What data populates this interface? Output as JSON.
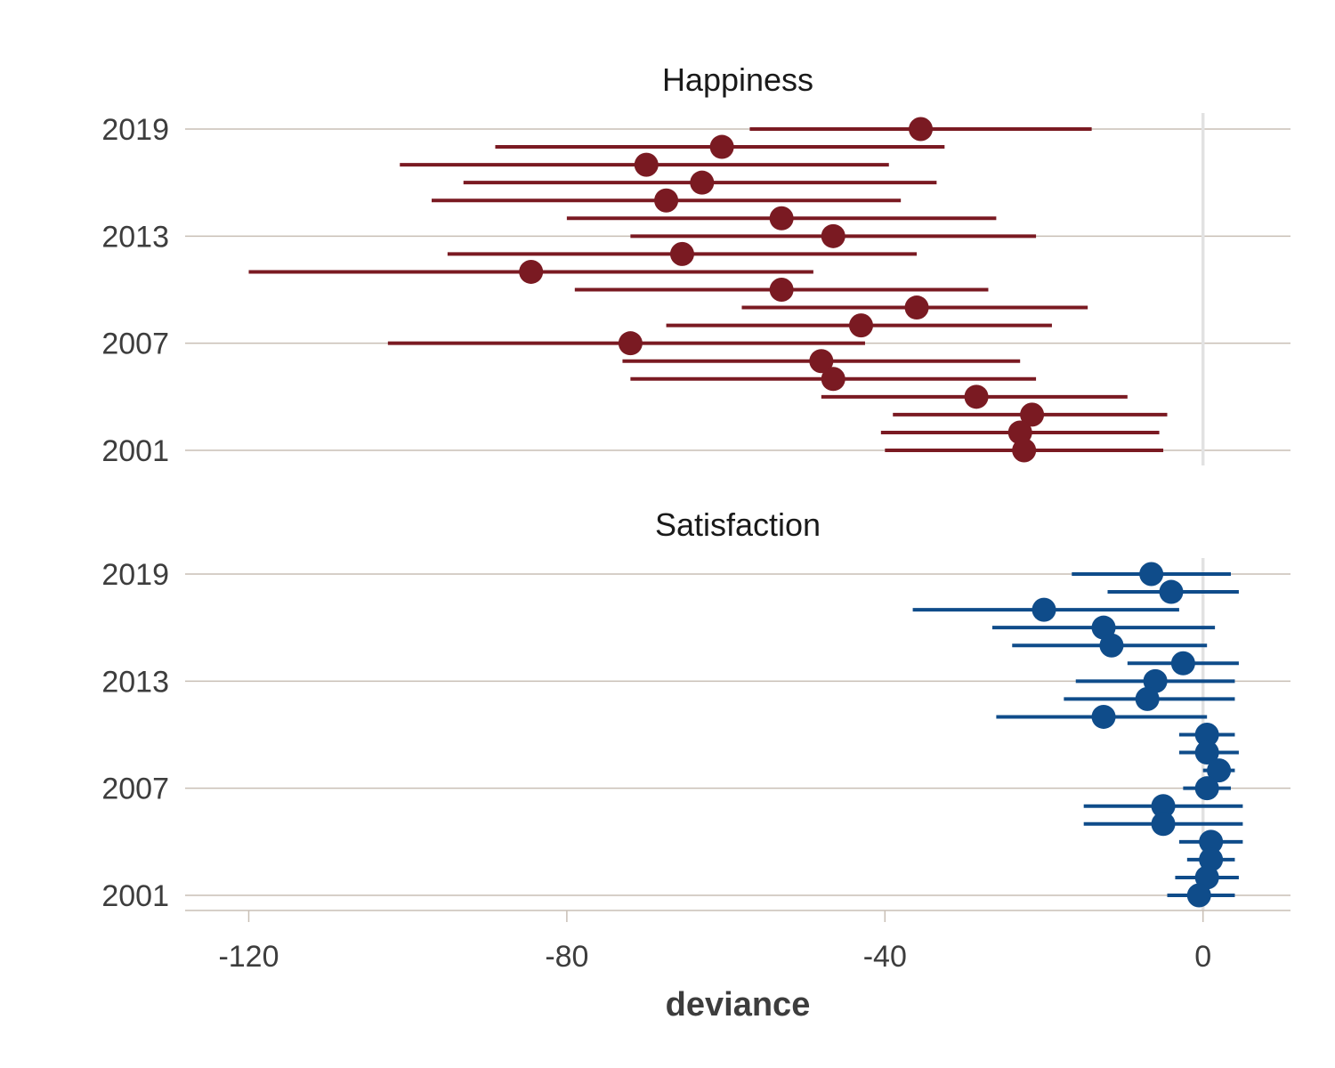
{
  "chart_data": {
    "type": "scatter",
    "subtype": "point-range (estimate with interval), faceted",
    "xlabel": "deviance",
    "xlim": [
      -128,
      11
    ],
    "x_ticks": [
      -120,
      -80,
      -40,
      0
    ],
    "y_ticks": [
      2001,
      2007,
      2013,
      2019
    ],
    "ylim": [
      2000.2,
      2019.8
    ],
    "grid": "horizontal gridlines at labeled years; vertical reference line at x = 0",
    "facets": [
      {
        "title": "Happiness",
        "color": "#7a1a22",
        "points": [
          {
            "year": 2019,
            "estimate": -35.5,
            "lower": -57,
            "upper": -14
          },
          {
            "year": 2018,
            "estimate": -60.5,
            "lower": -89,
            "upper": -32.5
          },
          {
            "year": 2017,
            "estimate": -70,
            "lower": -101,
            "upper": -39.5
          },
          {
            "year": 2016,
            "estimate": -63,
            "lower": -93,
            "upper": -33.5
          },
          {
            "year": 2015,
            "estimate": -67.5,
            "lower": -97,
            "upper": -38
          },
          {
            "year": 2014,
            "estimate": -53,
            "lower": -80,
            "upper": -26
          },
          {
            "year": 2013,
            "estimate": -46.5,
            "lower": -72,
            "upper": -21
          },
          {
            "year": 2012,
            "estimate": -65.5,
            "lower": -95,
            "upper": -36
          },
          {
            "year": 2011,
            "estimate": -84.5,
            "lower": -120,
            "upper": -49
          },
          {
            "year": 2010,
            "estimate": -53,
            "lower": -79,
            "upper": -27
          },
          {
            "year": 2009,
            "estimate": -36,
            "lower": -58,
            "upper": -14.5
          },
          {
            "year": 2008,
            "estimate": -43,
            "lower": -67.5,
            "upper": -19
          },
          {
            "year": 2007,
            "estimate": -72,
            "lower": -102.5,
            "upper": -42.5
          },
          {
            "year": 2006,
            "estimate": -48,
            "lower": -73,
            "upper": -23
          },
          {
            "year": 2005,
            "estimate": -46.5,
            "lower": -72,
            "upper": -21
          },
          {
            "year": 2004,
            "estimate": -28.5,
            "lower": -48,
            "upper": -9.5
          },
          {
            "year": 2003,
            "estimate": -21.5,
            "lower": -39,
            "upper": -4.5
          },
          {
            "year": 2002,
            "estimate": -23,
            "lower": -40.5,
            "upper": -5.5
          },
          {
            "year": 2001,
            "estimate": -22.5,
            "lower": -40,
            "upper": -5
          }
        ]
      },
      {
        "title": "Satisfaction",
        "color": "#0f4c8a",
        "points": [
          {
            "year": 2019,
            "estimate": -6.5,
            "lower": -16.5,
            "upper": 3.5
          },
          {
            "year": 2018,
            "estimate": -4,
            "lower": -12,
            "upper": 4.5
          },
          {
            "year": 2017,
            "estimate": -20,
            "lower": -36.5,
            "upper": -3
          },
          {
            "year": 2016,
            "estimate": -12.5,
            "lower": -26.5,
            "upper": 1.5
          },
          {
            "year": 2015,
            "estimate": -11.5,
            "lower": -24,
            "upper": 0.5
          },
          {
            "year": 2014,
            "estimate": -2.5,
            "lower": -9.5,
            "upper": 4.5
          },
          {
            "year": 2013,
            "estimate": -6,
            "lower": -16,
            "upper": 4
          },
          {
            "year": 2012,
            "estimate": -7,
            "lower": -17.5,
            "upper": 4
          },
          {
            "year": 2011,
            "estimate": -12.5,
            "lower": -26,
            "upper": 0.5
          },
          {
            "year": 2010,
            "estimate": 0.5,
            "lower": -3,
            "upper": 4
          },
          {
            "year": 2009,
            "estimate": 0.5,
            "lower": -3,
            "upper": 4.5
          },
          {
            "year": 2008,
            "estimate": 2,
            "lower": 0,
            "upper": 4
          },
          {
            "year": 2007,
            "estimate": 0.5,
            "lower": -2.5,
            "upper": 3.5
          },
          {
            "year": 2006,
            "estimate": -5,
            "lower": -15,
            "upper": 5
          },
          {
            "year": 2005,
            "estimate": -5,
            "lower": -15,
            "upper": 5
          },
          {
            "year": 2004,
            "estimate": 1,
            "lower": -3,
            "upper": 5
          },
          {
            "year": 2003,
            "estimate": 1,
            "lower": -2,
            "upper": 4
          },
          {
            "year": 2002,
            "estimate": 0.5,
            "lower": -3.5,
            "upper": 4.5
          },
          {
            "year": 2001,
            "estimate": -0.5,
            "lower": -4.5,
            "upper": 4
          }
        ]
      }
    ]
  }
}
